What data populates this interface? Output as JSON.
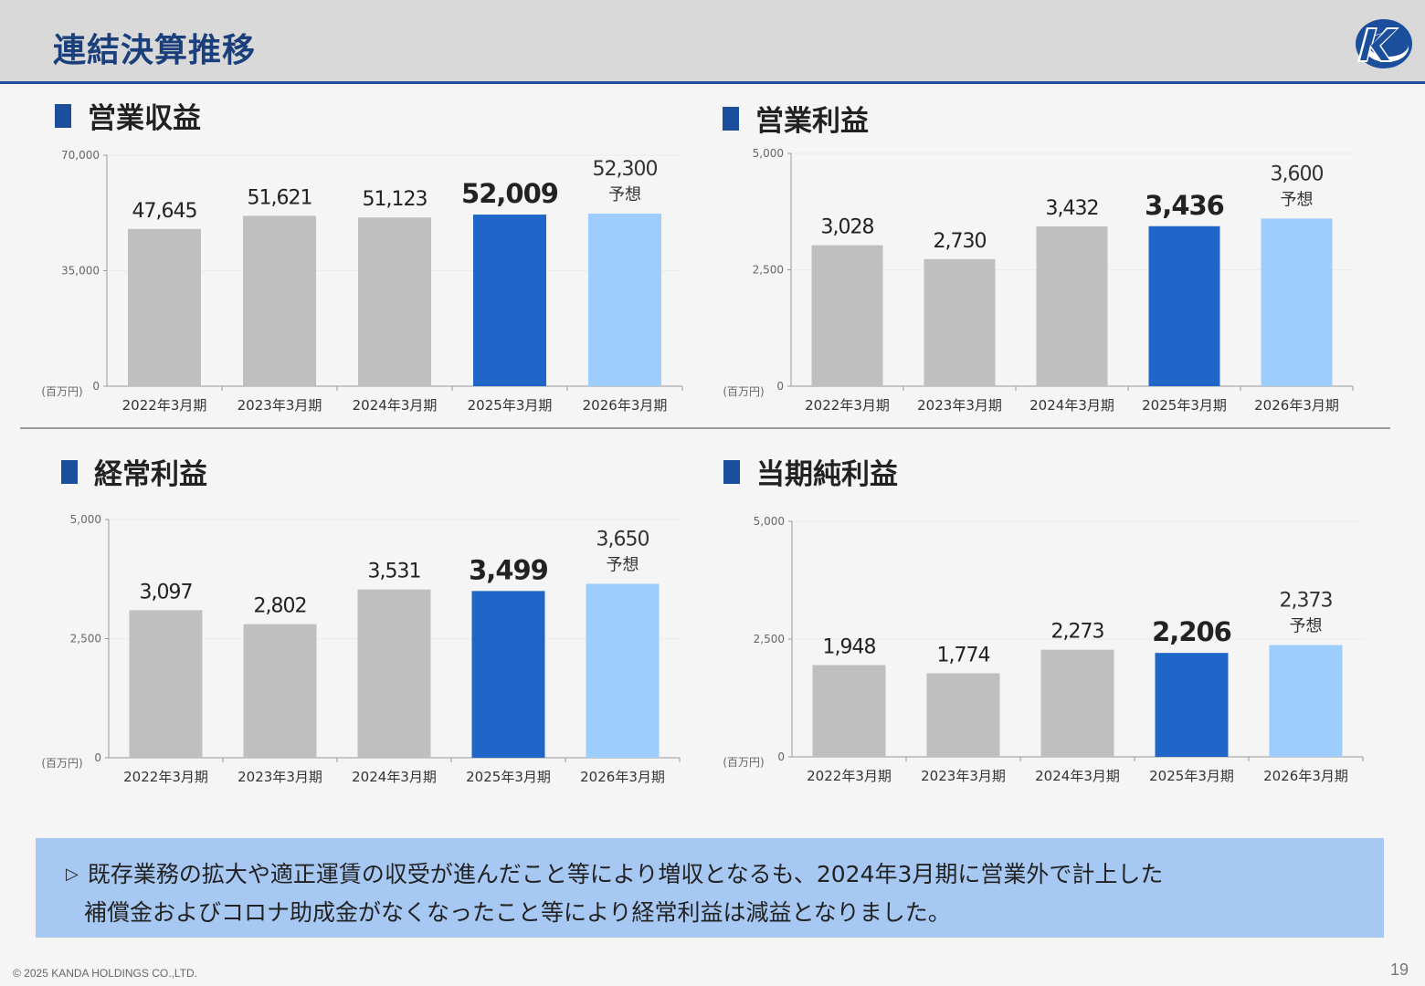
{
  "header": {
    "title": "連結決算推移"
  },
  "footer": {
    "copyright": "© 2025 KANDA HOLDINGS CO.,LTD.",
    "page_number": "19"
  },
  "note": {
    "marker": "▷",
    "line1": "既存業務の拡大や適正運賃の収受が進んだこと等により増収となるも、2024年3月期に営業外で計上した",
    "line2": "補償金およびコロナ助成金がなくなったこと等により経常利益は減益となりました。"
  },
  "colors": {
    "past": "#bfbfbf",
    "current": "#1f66c8",
    "forecast": "#9dcdfc",
    "accent": "#1b4f9c"
  },
  "chart_data": [
    {
      "type": "bar",
      "title": "営業収益",
      "unit_label": "(百万円)",
      "categories": [
        "2022年3月期",
        "2023年3月期",
        "2024年3月期",
        "2025年3月期",
        "2026年3月期"
      ],
      "values": [
        47645,
        51621,
        51123,
        52009,
        52300
      ],
      "value_labels": [
        "47,645",
        "51,621",
        "51,123",
        "52,009",
        "52,300"
      ],
      "forecast_label": "予想",
      "ylim": [
        0,
        70000
      ],
      "yticks": [
        "0",
        "35,000",
        "70,000"
      ]
    },
    {
      "type": "bar",
      "title": "営業利益",
      "unit_label": "(百万円)",
      "categories": [
        "2022年3月期",
        "2023年3月期",
        "2024年3月期",
        "2025年3月期",
        "2026年3月期"
      ],
      "values": [
        3028,
        2730,
        3432,
        3436,
        3600
      ],
      "value_labels": [
        "3,028",
        "2,730",
        "3,432",
        "3,436",
        "3,600"
      ],
      "forecast_label": "予想",
      "ylim": [
        0,
        5000
      ],
      "yticks": [
        "0",
        "2,500",
        "5,000"
      ]
    },
    {
      "type": "bar",
      "title": "経常利益",
      "unit_label": "(百万円)",
      "categories": [
        "2022年3月期",
        "2023年3月期",
        "2024年3月期",
        "2025年3月期",
        "2026年3月期"
      ],
      "values": [
        3097,
        2802,
        3531,
        3499,
        3650
      ],
      "value_labels": [
        "3,097",
        "2,802",
        "3,531",
        "3,499",
        "3,650"
      ],
      "forecast_label": "予想",
      "ylim": [
        0,
        5000
      ],
      "yticks": [
        "0",
        "2,500",
        "5,000"
      ]
    },
    {
      "type": "bar",
      "title": "当期純利益",
      "unit_label": "(百万円)",
      "categories": [
        "2022年3月期",
        "2023年3月期",
        "2024年3月期",
        "2025年3月期",
        "2026年3月期"
      ],
      "values": [
        1948,
        1774,
        2273,
        2206,
        2373
      ],
      "value_labels": [
        "1,948",
        "1,774",
        "2,273",
        "2,206",
        "2,373"
      ],
      "forecast_label": "予想",
      "ylim": [
        0,
        5000
      ],
      "yticks": [
        "0",
        "2,500",
        "5,000"
      ]
    }
  ]
}
